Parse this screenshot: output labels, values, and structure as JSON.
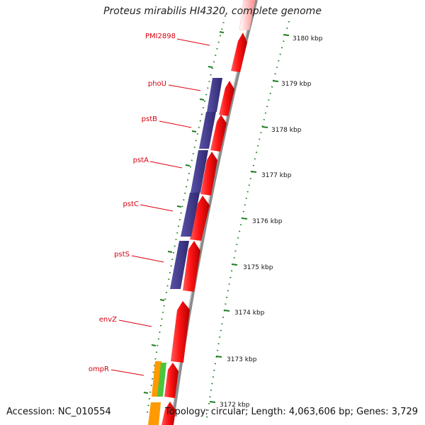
{
  "title": "Proteus mirabilis HI4320, complete genome",
  "accession": "Accession: NC_010554",
  "topology": "Topology: circular; Length: 4,063,606 bp; Genes: 3,729",
  "colors": {
    "forward_gene": "#ff1414",
    "reverse_gene": "#433a8c",
    "gene_label": "#d9000d",
    "tick": "#1e7d1e",
    "backbone": "#8c8c8c",
    "orange_feature": "#ff9a00",
    "green_feature": "#4cc43c"
  },
  "kbp_ticks": [
    {
      "kbp": 3180,
      "label": "3180 kbp"
    },
    {
      "kbp": 3179,
      "label": "3179 kbp"
    },
    {
      "kbp": 3178,
      "label": "3178 kbp"
    },
    {
      "kbp": 3177,
      "label": "3177 kbp"
    },
    {
      "kbp": 3176,
      "label": "3176 kbp"
    },
    {
      "kbp": 3175,
      "label": "3175 kbp"
    },
    {
      "kbp": 3174,
      "label": "3174 kbp"
    },
    {
      "kbp": 3173,
      "label": "3173 kbp"
    },
    {
      "kbp": 3172,
      "label": "3172 kbp"
    }
  ],
  "genes": [
    {
      "name": "PMI2898"
    },
    {
      "name": "phoU"
    },
    {
      "name": "pstB"
    },
    {
      "name": "pstA"
    },
    {
      "name": "pstC"
    },
    {
      "name": "pstS"
    },
    {
      "name": "envZ"
    },
    {
      "name": "ompR"
    }
  ]
}
